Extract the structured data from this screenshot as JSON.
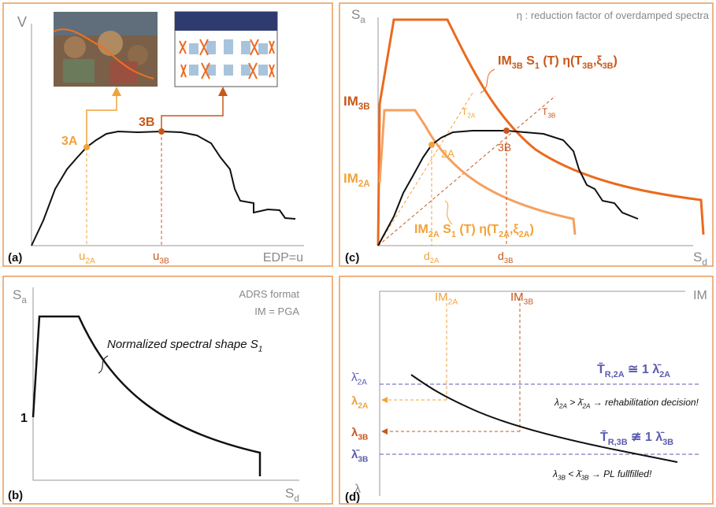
{
  "panels": {
    "a": {
      "label": "(a)",
      "y_axis": "V",
      "x_axis": "EDP=u",
      "point_3A": "3A",
      "point_3B": "3B",
      "tick_u2A": [
        {
          "t": "u",
          "s": "2A"
        }
      ],
      "tick_u3B": [
        {
          "t": "u",
          "s": "3B"
        }
      ]
    },
    "b": {
      "label": "(b)",
      "y_axis": [
        {
          "t": "S",
          "s": "a"
        }
      ],
      "x_axis": [
        {
          "t": "S",
          "s": "d"
        }
      ],
      "format": "ADRS format",
      "im": "IM = PGA",
      "one": "1",
      "shape": [
        {
          "t": "Normalized spectral shape S",
          "s": "1"
        }
      ]
    },
    "c": {
      "label": "(c)",
      "y_axis": [
        {
          "t": "S",
          "s": "a"
        }
      ],
      "x_axis": [
        {
          "t": "S",
          "s": "d"
        }
      ],
      "note": "η : reduction factor of overdamped spectra",
      "im3b": [
        {
          "t": "IM",
          "s": "3B"
        }
      ],
      "im2a": [
        {
          "t": "IM",
          "s": "2A"
        }
      ],
      "t2a": [
        {
          "t": "T",
          "s": "2A"
        }
      ],
      "t3b": [
        {
          "t": "T",
          "s": "3B"
        }
      ],
      "p2a": "2A",
      "p3b": "3B",
      "d2a": [
        {
          "t": "d",
          "s": "2A"
        }
      ],
      "d3b": [
        {
          "t": "d",
          "s": "3B"
        }
      ],
      "formula_3b": [
        {
          "t": "IM",
          "s": "3B"
        },
        {
          "t": " S",
          "s": "1"
        },
        {
          "t": " (T) η(T",
          "s": "3B"
        },
        {
          "t": ",ξ",
          "s": "3B"
        },
        {
          "t": ")"
        }
      ],
      "formula_2a": [
        {
          "t": "IM",
          "s": "2A"
        },
        {
          "t": " S",
          "s": "1"
        },
        {
          "t": " (T) η(T",
          "s": "2A"
        },
        {
          "t": ",ξ",
          "s": "2A"
        },
        {
          "t": ")"
        }
      ]
    },
    "d": {
      "label": "(d)",
      "x_axis": "IM",
      "y_axis": "λ",
      "im2a": [
        {
          "t": "IM",
          "s": "2A"
        }
      ],
      "im3b": [
        {
          "t": "IM",
          "s": "3B"
        }
      ],
      "lbar2a": [
        {
          "t": "λ̄",
          "s": "2A"
        }
      ],
      "l2a": [
        {
          "t": "λ",
          "s": "2A"
        }
      ],
      "l3b": [
        {
          "t": "λ",
          "s": "3B"
        }
      ],
      "lbar3b": [
        {
          "t": "λ̄",
          "s": "3B"
        }
      ],
      "tr2a": [
        {
          "t": "T̄",
          "s": "R,2A"
        },
        {
          "t": " ≅ 1 λ̄",
          "s": "2A"
        }
      ],
      "tr3b": [
        {
          "t": "T̄",
          "s": "R,3B"
        },
        {
          "t": " ≇ 1 λ̄",
          "s": "3B"
        }
      ],
      "decision": [
        {
          "t": "λ",
          "s": "2A"
        },
        {
          "t": " > λ̄",
          "s": "2A"
        },
        {
          "t": " → rehabilitation decision!"
        }
      ],
      "fulfilled": [
        {
          "t": "λ",
          "s": "3B"
        },
        {
          "t": " < λ̄",
          "s": "3B"
        },
        {
          "t": " → PL fullfilled!"
        }
      ]
    }
  }
}
